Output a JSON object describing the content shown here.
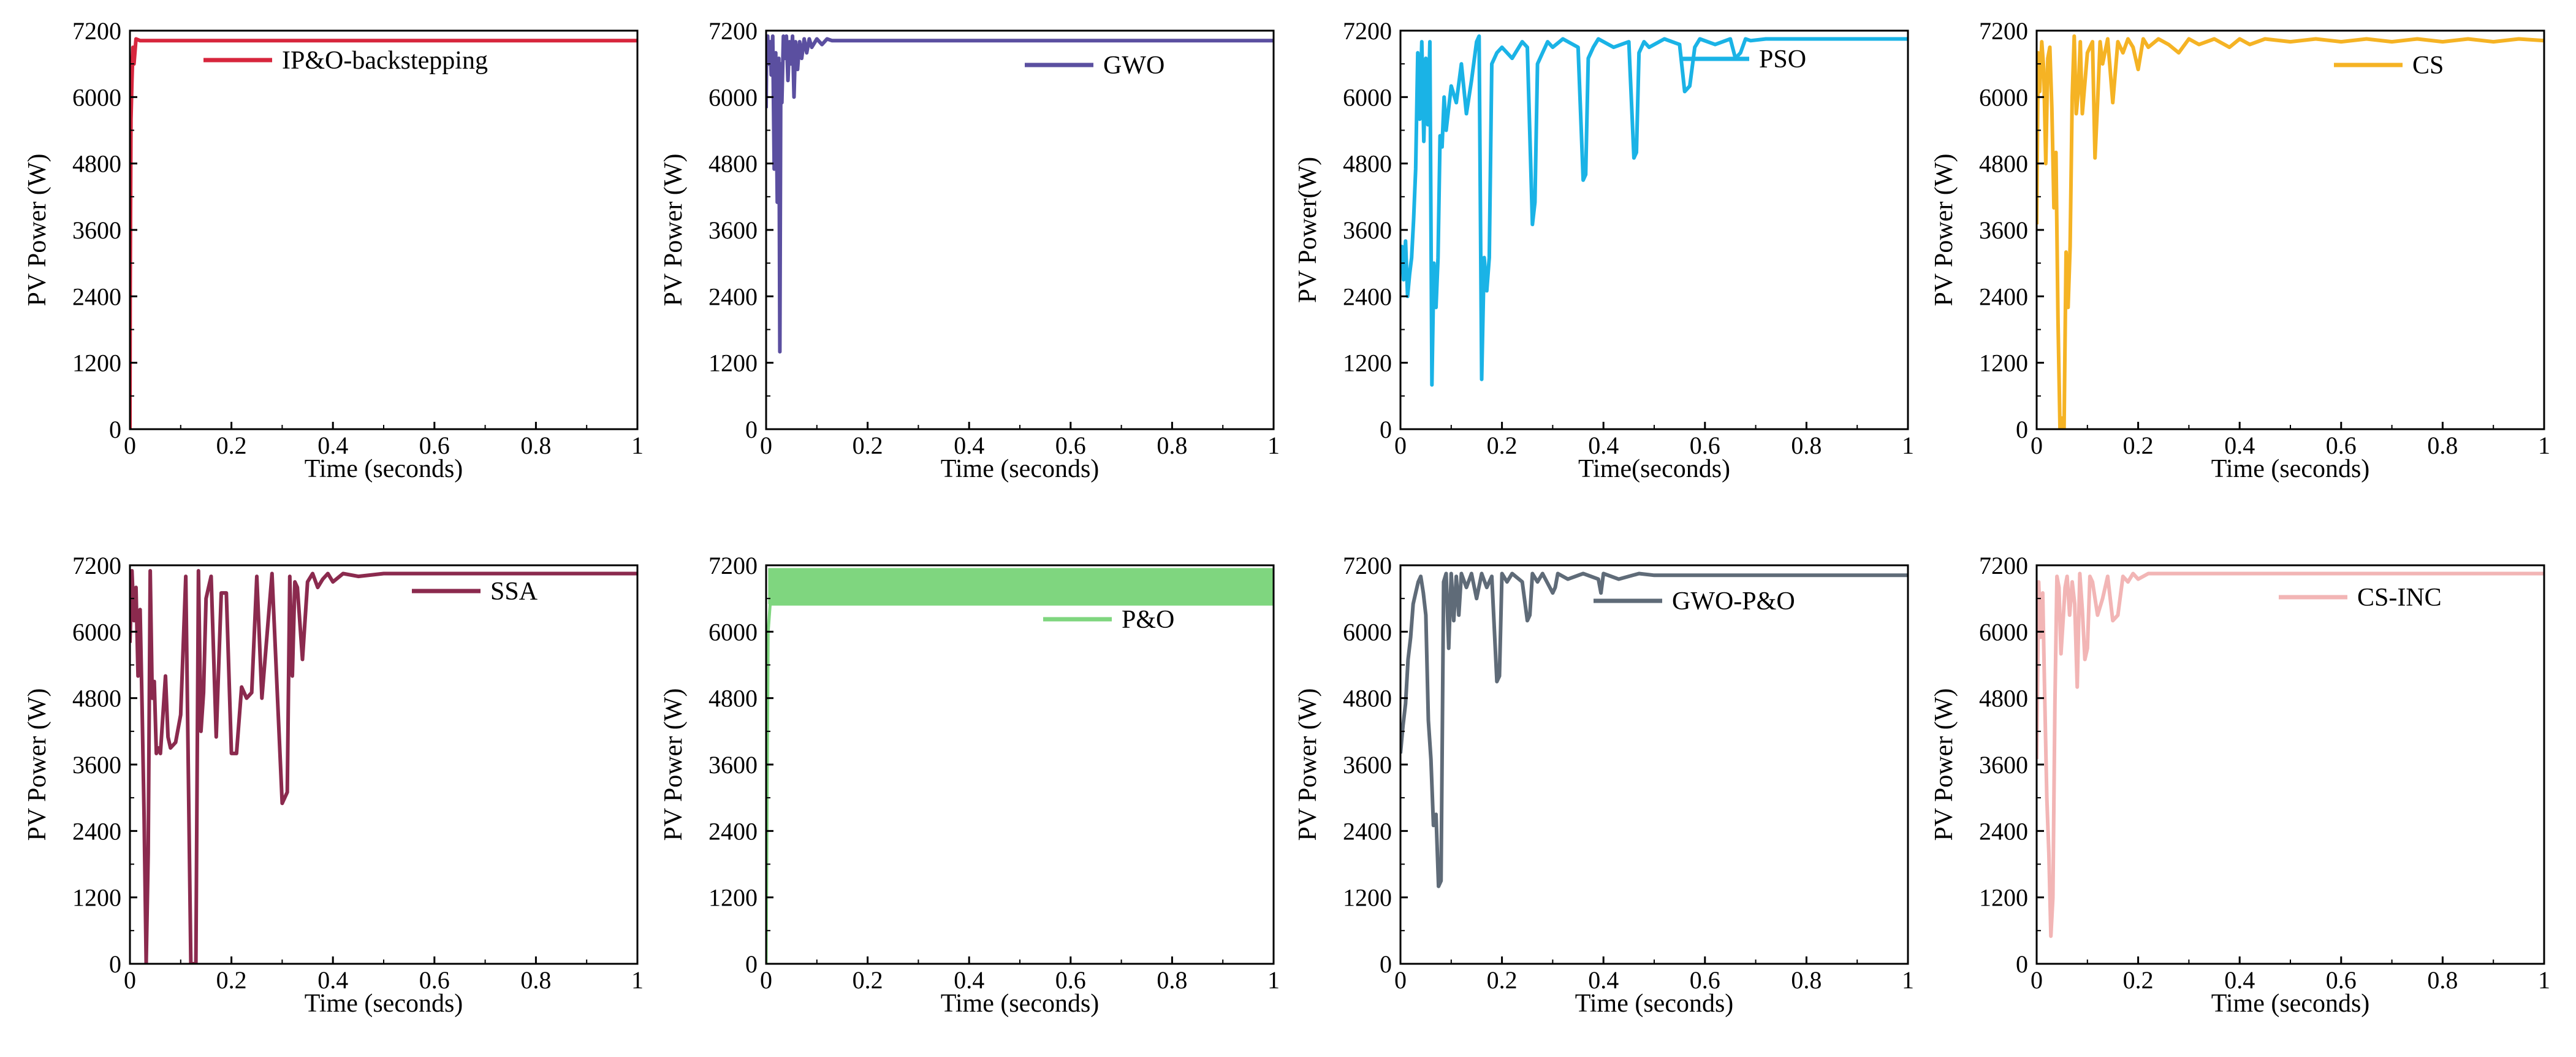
{
  "figure": {
    "description": "PV power tracking comparison of eight MPPT methods"
  },
  "chart_data": [
    {
      "type": "line",
      "title": "",
      "xlabel": "Time (seconds)",
      "ylabel": "PV Power (W)",
      "xlim": [
        0,
        1
      ],
      "ylim": [
        0,
        7200
      ],
      "xticks": [
        "0",
        "0.2",
        "0.4",
        "0.6",
        "0.8",
        "1"
      ],
      "yticks": [
        "0",
        "1200",
        "2400",
        "3600",
        "4800",
        "6000",
        "7200"
      ],
      "color": "#d7263d",
      "series": [
        {
          "name": "IP&O-backstepping",
          "x": [
            0,
            0.0005,
            0.002,
            0.004,
            0.006,
            0.008,
            0.012,
            0.02,
            1
          ],
          "y": [
            0,
            2500,
            5600,
            6300,
            6900,
            6600,
            7050,
            7020,
            7020
          ]
        }
      ]
    },
    {
      "type": "line",
      "title": "",
      "xlabel": "Time (seconds)",
      "ylabel": "PV Power (W)",
      "xlim": [
        0,
        1
      ],
      "ylim": [
        0,
        7200
      ],
      "xticks": [
        "0",
        "0.2",
        "0.4",
        "0.6",
        "0.8",
        "1"
      ],
      "yticks": [
        "0",
        "1200",
        "2400",
        "3600",
        "4800",
        "6000",
        "7200"
      ],
      "color": "#5b4fa0",
      "series": [
        {
          "name": "GWO",
          "x": [
            0,
            0.001,
            0.003,
            0.005,
            0.008,
            0.01,
            0.013,
            0.016,
            0.019,
            0.022,
            0.025,
            0.027,
            0.029,
            0.031,
            0.034,
            0.037,
            0.04,
            0.043,
            0.046,
            0.049,
            0.052,
            0.055,
            0.058,
            0.062,
            0.066,
            0.07,
            0.075,
            0.08,
            0.085,
            0.09,
            0.1,
            0.11,
            0.12,
            0.13,
            1
          ],
          "y": [
            5800,
            6900,
            7100,
            6600,
            7000,
            6400,
            7100,
            4700,
            6800,
            4100,
            6700,
            1400,
            6600,
            5900,
            7100,
            6700,
            7100,
            6300,
            7000,
            6600,
            7100,
            6000,
            7000,
            6500,
            7000,
            6700,
            7050,
            6800,
            7050,
            6900,
            7050,
            6950,
            7050,
            7020,
            7020
          ]
        }
      ]
    },
    {
      "type": "line",
      "title": "",
      "xlabel": "Time(seconds)",
      "ylabel": "PV Power(W)",
      "xlim": [
        0,
        1
      ],
      "ylim": [
        0,
        7200
      ],
      "xticks": [
        "0",
        "0.2",
        "0.4",
        "0.6",
        "0.8",
        "1"
      ],
      "yticks": [
        "0",
        "1200",
        "2400",
        "3600",
        "4800",
        "6000",
        "7200"
      ],
      "color": "#1ab3e6",
      "series": [
        {
          "name": "PSO",
          "x": [
            0,
            0.003,
            0.006,
            0.01,
            0.014,
            0.018,
            0.022,
            0.026,
            0.03,
            0.034,
            0.038,
            0.042,
            0.046,
            0.05,
            0.054,
            0.058,
            0.062,
            0.066,
            0.07,
            0.074,
            0.078,
            0.082,
            0.086,
            0.09,
            0.1,
            0.11,
            0.12,
            0.13,
            0.14,
            0.15,
            0.155,
            0.16,
            0.165,
            0.17,
            0.175,
            0.18,
            0.19,
            0.2,
            0.22,
            0.24,
            0.25,
            0.26,
            0.265,
            0.27,
            0.28,
            0.29,
            0.3,
            0.32,
            0.35,
            0.36,
            0.365,
            0.37,
            0.38,
            0.39,
            0.42,
            0.45,
            0.46,
            0.465,
            0.47,
            0.48,
            0.49,
            0.52,
            0.55,
            0.56,
            0.57,
            0.58,
            0.59,
            0.62,
            0.65,
            0.66,
            0.67,
            0.68,
            0.69,
            0.72,
            1
          ],
          "y": [
            2800,
            3300,
            2700,
            3400,
            2400,
            2800,
            3100,
            3800,
            4700,
            6800,
            5600,
            7000,
            5200,
            6700,
            5500,
            7000,
            800,
            3000,
            2200,
            3100,
            5300,
            5100,
            6000,
            5400,
            6200,
            5900,
            6600,
            5700,
            6300,
            7000,
            7100,
            900,
            3100,
            2500,
            3100,
            6600,
            6800,
            6900,
            6700,
            7000,
            6900,
            3700,
            4100,
            6600,
            6800,
            7000,
            6900,
            7050,
            6900,
            4500,
            4600,
            6700,
            6900,
            7050,
            6900,
            7000,
            4900,
            5000,
            6800,
            7000,
            6900,
            7050,
            6950,
            6100,
            6200,
            6900,
            7050,
            6950,
            7050,
            6700,
            6800,
            7050,
            7020,
            7050,
            7050
          ]
        }
      ]
    },
    {
      "type": "line",
      "title": "",
      "xlabel": "Time (seconds)",
      "ylabel": "PV Power (W)",
      "xlim": [
        0,
        1
      ],
      "ylim": [
        0,
        7200
      ],
      "xticks": [
        "0",
        "0.2",
        "0.4",
        "0.6",
        "0.8",
        "1"
      ],
      "yticks": [
        "0",
        "1200",
        "2400",
        "3600",
        "4800",
        "6000",
        "7200"
      ],
      "color": "#f5b324",
      "series": [
        {
          "name": "CS",
          "x": [
            0,
            0.003,
            0.006,
            0.01,
            0.014,
            0.018,
            0.022,
            0.026,
            0.03,
            0.034,
            0.038,
            0.042,
            0.046,
            0.05,
            0.054,
            0.058,
            0.062,
            0.066,
            0.07,
            0.074,
            0.078,
            0.082,
            0.086,
            0.09,
            0.1,
            0.11,
            0.115,
            0.12,
            0.125,
            0.13,
            0.14,
            0.15,
            0.16,
            0.17,
            0.18,
            0.19,
            0.2,
            0.21,
            0.22,
            0.24,
            0.26,
            0.28,
            0.3,
            0.32,
            0.35,
            0.38,
            0.4,
            0.42,
            0.45,
            0.5,
            0.55,
            0.6,
            0.65,
            0.7,
            0.75,
            0.8,
            0.85,
            0.9,
            0.95,
            1
          ],
          "y": [
            3700,
            6800,
            6100,
            7000,
            6500,
            4800,
            6700,
            6900,
            5800,
            4000,
            5000,
            2000,
            0,
            200,
            0,
            3200,
            2200,
            3300,
            6000,
            7100,
            5700,
            6100,
            7000,
            5700,
            6800,
            7000,
            4900,
            5900,
            7000,
            6600,
            7050,
            5900,
            7000,
            6800,
            7050,
            6900,
            6500,
            7050,
            6900,
            7050,
            6950,
            6800,
            7050,
            6950,
            7050,
            6900,
            7050,
            6950,
            7050,
            7000,
            7050,
            7000,
            7050,
            7000,
            7050,
            7000,
            7050,
            7000,
            7050,
            7020
          ]
        }
      ]
    },
    {
      "type": "line",
      "title": "",
      "xlabel": "Time (seconds)",
      "ylabel": "PV Power (W)",
      "xlim": [
        0,
        1
      ],
      "ylim": [
        0,
        7200
      ],
      "xticks": [
        "0",
        "0.2",
        "0.4",
        "0.6",
        "0.8",
        "1"
      ],
      "yticks": [
        "0",
        "1200",
        "2400",
        "3600",
        "4800",
        "6000",
        "7200"
      ],
      "color": "#8b2a4e",
      "series": [
        {
          "name": "SSA",
          "x": [
            0,
            0.004,
            0.008,
            0.012,
            0.016,
            0.02,
            0.024,
            0.028,
            0.032,
            0.036,
            0.04,
            0.044,
            0.048,
            0.052,
            0.056,
            0.06,
            0.07,
            0.075,
            0.08,
            0.09,
            0.1,
            0.11,
            0.12,
            0.13,
            0.135,
            0.14,
            0.145,
            0.15,
            0.155,
            0.16,
            0.17,
            0.18,
            0.19,
            0.2,
            0.21,
            0.22,
            0.23,
            0.24,
            0.25,
            0.26,
            0.28,
            0.3,
            0.31,
            0.315,
            0.32,
            0.325,
            0.33,
            0.34,
            0.35,
            0.36,
            0.37,
            0.38,
            0.39,
            0.4,
            0.42,
            0.45,
            0.5,
            1
          ],
          "y": [
            5800,
            7100,
            6200,
            6800,
            5200,
            6400,
            4600,
            2600,
            0,
            2000,
            7100,
            4800,
            5100,
            3800,
            3900,
            3800,
            5200,
            4100,
            3900,
            4000,
            4500,
            7000,
            0,
            0,
            7100,
            4200,
            4900,
            6600,
            6800,
            7000,
            4100,
            6700,
            6700,
            3800,
            3800,
            5000,
            4800,
            4900,
            7000,
            4800,
            7050,
            2900,
            3100,
            7000,
            5200,
            6900,
            6800,
            5500,
            6900,
            7050,
            6800,
            6950,
            7050,
            6900,
            7050,
            7000,
            7050,
            7050
          ]
        }
      ]
    },
    {
      "type": "area",
      "title": "",
      "xlabel": "Time (seconds)",
      "ylabel": "PV Power (W)",
      "xlim": [
        0,
        1
      ],
      "ylim": [
        0,
        7200
      ],
      "xticks": [
        "0",
        "0.2",
        "0.4",
        "0.6",
        "0.8",
        "1"
      ],
      "yticks": [
        "0",
        "1200",
        "2400",
        "3600",
        "4800",
        "6000",
        "7200"
      ],
      "color": "#7fd67f",
      "series": [
        {
          "name": "P&O",
          "x": [
            0,
            0.004,
            0.008,
            1
          ],
          "y": [
            0,
            6000,
            6500,
            6500
          ],
          "band": [
            6500,
            7150
          ]
        }
      ]
    },
    {
      "type": "line",
      "title": "",
      "xlabel": "Time (seconds)",
      "ylabel": "PV Power (W)",
      "xlim": [
        0,
        1
      ],
      "ylim": [
        0,
        7200
      ],
      "xticks": [
        "0",
        "0.2",
        "0.4",
        "0.6",
        "0.8",
        "1"
      ],
      "yticks": [
        "0",
        "1200",
        "2400",
        "3600",
        "4800",
        "6000",
        "7200"
      ],
      "color": "#5f6b78",
      "series": [
        {
          "name": "GWO-P&O",
          "x": [
            0,
            0.005,
            0.01,
            0.015,
            0.02,
            0.025,
            0.03,
            0.035,
            0.04,
            0.045,
            0.05,
            0.055,
            0.06,
            0.065,
            0.07,
            0.075,
            0.08,
            0.085,
            0.09,
            0.095,
            0.1,
            0.105,
            0.11,
            0.115,
            0.12,
            0.13,
            0.14,
            0.15,
            0.16,
            0.17,
            0.18,
            0.19,
            0.195,
            0.2,
            0.21,
            0.22,
            0.24,
            0.25,
            0.255,
            0.26,
            0.27,
            0.28,
            0.3,
            0.305,
            0.31,
            0.33,
            0.36,
            0.39,
            0.395,
            0.4,
            0.43,
            0.47,
            0.5,
            1
          ],
          "y": [
            3800,
            4300,
            4700,
            5500,
            5900,
            6500,
            6700,
            6900,
            7000,
            6700,
            6300,
            4400,
            3700,
            2500,
            2700,
            1400,
            1500,
            6900,
            7050,
            5700,
            7050,
            6200,
            7000,
            6300,
            7050,
            6800,
            7050,
            6600,
            7050,
            6800,
            7000,
            5100,
            5200,
            7050,
            6900,
            7050,
            6900,
            6200,
            6300,
            7050,
            6900,
            7050,
            6700,
            6800,
            7050,
            6950,
            7050,
            6950,
            6700,
            7050,
            6950,
            7050,
            7020,
            7020
          ]
        }
      ]
    },
    {
      "type": "line",
      "title": "",
      "xlabel": "Time (seconds)",
      "ylabel": "PV Power (W)",
      "xlim": [
        0,
        1
      ],
      "ylim": [
        0,
        7200
      ],
      "xticks": [
        "0",
        "0.2",
        "0.4",
        "0.6",
        "0.8",
        "1"
      ],
      "yticks": [
        "0",
        "1200",
        "2400",
        "3600",
        "4800",
        "6000",
        "7200"
      ],
      "color": "#f2b5b5",
      "series": [
        {
          "name": "CS-INC",
          "x": [
            0,
            0.004,
            0.008,
            0.012,
            0.016,
            0.02,
            0.024,
            0.028,
            0.032,
            0.036,
            0.04,
            0.044,
            0.048,
            0.052,
            0.056,
            0.06,
            0.065,
            0.07,
            0.075,
            0.08,
            0.085,
            0.09,
            0.095,
            0.1,
            0.105,
            0.11,
            0.12,
            0.13,
            0.14,
            0.15,
            0.16,
            0.17,
            0.18,
            0.19,
            0.2,
            0.22,
            0.25,
            1
          ],
          "y": [
            3700,
            6900,
            5900,
            6700,
            4800,
            3000,
            2000,
            500,
            1200,
            4700,
            7000,
            6800,
            5600,
            6200,
            6800,
            7000,
            6300,
            6900,
            6500,
            5000,
            7050,
            6400,
            5500,
            5700,
            7000,
            6900,
            6300,
            6600,
            7000,
            6200,
            6300,
            7000,
            6900,
            7050,
            6950,
            7050,
            7050,
            7050
          ]
        }
      ]
    }
  ]
}
